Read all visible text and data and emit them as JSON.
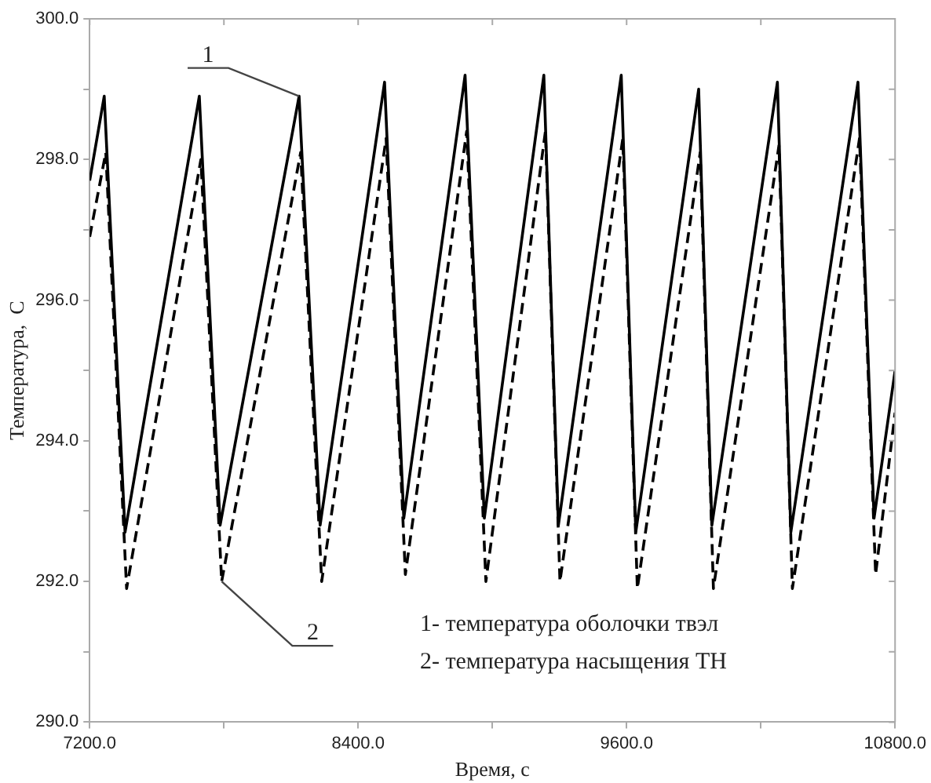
{
  "chart_data": {
    "type": "line",
    "xlabel": "Время, с",
    "ylabel": "Температура,  С",
    "xlim": [
      7200,
      10800
    ],
    "xticks": [
      {
        "value": 7200,
        "label": "7200.0"
      },
      {
        "value": 7800,
        "label": null
      },
      {
        "value": 8400,
        "label": "8400.0"
      },
      {
        "value": 9000,
        "label": null
      },
      {
        "value": 9600,
        "label": "9600.0"
      },
      {
        "value": 10200,
        "label": null
      },
      {
        "value": 10800,
        "label": "10800.0"
      }
    ],
    "ylim": [
      290,
      300
    ],
    "yticks": [
      {
        "value": 290,
        "label": "290.0"
      },
      {
        "value": 291,
        "label": null
      },
      {
        "value": 292,
        "label": "292.0"
      },
      {
        "value": 293,
        "label": null
      },
      {
        "value": 294,
        "label": "294.0"
      },
      {
        "value": 295,
        "label": null
      },
      {
        "value": 296,
        "label": "296.0"
      },
      {
        "value": 297,
        "label": null
      },
      {
        "value": 298,
        "label": "298.0"
      },
      {
        "value": 299,
        "label": null
      },
      {
        "value": 300,
        "label": "300.0"
      }
    ],
    "grid": false,
    "legend": false,
    "marker": "none",
    "series": [
      {
        "color": "#000000",
        "line_style": "solid",
        "x": [
          7200,
          7265,
          7358,
          7690,
          7783,
          8136,
          8230,
          8518,
          8604,
          8878,
          8964,
          9230,
          9295,
          9576,
          9641,
          9922,
          9981,
          10274,
          10334,
          10634,
          10706,
          10800
        ],
        "values": [
          297.7,
          298.9,
          292.7,
          298.9,
          292.8,
          298.9,
          292.8,
          299.1,
          292.9,
          299.2,
          292.9,
          299.2,
          292.8,
          299.2,
          292.7,
          299.0,
          292.8,
          299.1,
          292.7,
          299.1,
          292.9,
          295.0
        ]
      },
      {
        "color": "#000000",
        "line_style": "dashed",
        "x": [
          7200,
          7272,
          7365,
          7697,
          7790,
          8143,
          8237,
          8525,
          8611,
          8885,
          8971,
          9237,
          9302,
          9583,
          9648,
          9929,
          9988,
          10281,
          10341,
          10641,
          10713,
          10800
        ],
        "values": [
          296.9,
          298.1,
          291.9,
          298.0,
          292.0,
          298.1,
          292.0,
          298.3,
          292.1,
          298.4,
          292.0,
          298.4,
          292.0,
          298.3,
          291.9,
          298.1,
          291.9,
          298.2,
          291.9,
          298.3,
          292.1,
          294.4
        ]
      }
    ],
    "annotations": [
      {
        "text": "1",
        "x": 8136,
        "y": 298.9
      },
      {
        "text": "2",
        "x": 7790,
        "y": 292.0
      },
      "1- температура оболочки твэл",
      "2- температура насыщения ТН"
    ]
  }
}
